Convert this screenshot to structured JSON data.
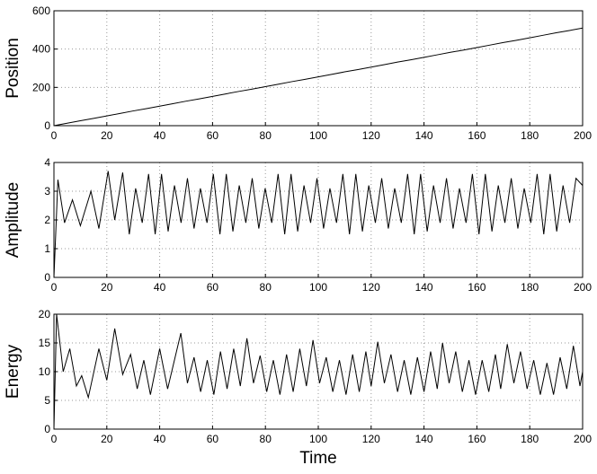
{
  "chart_data": [
    {
      "type": "line",
      "ylabel": "Position",
      "color": "#000000",
      "grid": true,
      "xlim": [
        0,
        200
      ],
      "xticks": [
        0,
        20,
        40,
        60,
        80,
        100,
        120,
        140,
        160,
        180,
        200
      ],
      "ylim": [
        0,
        600
      ],
      "yticks": [
        0,
        200,
        400,
        600
      ],
      "x": [
        0,
        5,
        10,
        15,
        20,
        25,
        30,
        35,
        40,
        45,
        50,
        55,
        60,
        65,
        70,
        75,
        80,
        85,
        90,
        95,
        100,
        105,
        110,
        115,
        120,
        125,
        130,
        135,
        140,
        145,
        150,
        155,
        160,
        165,
        170,
        175,
        180,
        185,
        190,
        195,
        200
      ],
      "values": [
        0,
        13,
        26,
        38,
        51,
        64,
        77,
        89,
        102,
        115,
        128,
        140,
        153,
        166,
        179,
        191,
        204,
        217,
        230,
        242,
        255,
        268,
        281,
        293,
        306,
        319,
        332,
        344,
        357,
        370,
        383,
        395,
        408,
        421,
        434,
        446,
        459,
        472,
        485,
        497,
        510
      ]
    },
    {
      "type": "line",
      "ylabel": "Amplitude",
      "color": "#000000",
      "grid": true,
      "xlim": [
        0,
        200
      ],
      "xticks": [
        0,
        20,
        40,
        60,
        80,
        100,
        120,
        140,
        160,
        180,
        200
      ],
      "ylim": [
        0,
        4
      ],
      "yticks": [
        0,
        1,
        2,
        3,
        4
      ],
      "x": [
        0,
        1.5,
        4,
        7,
        10,
        14,
        17,
        20.5,
        23,
        26,
        28.5,
        30.9,
        33.4,
        35.8,
        38.3,
        40.7,
        43.2,
        45.6,
        48.1,
        50.5,
        53,
        55.4,
        57.9,
        60.3,
        62.8,
        65.2,
        67.7,
        70.1,
        72.6,
        75,
        77.5,
        79.9,
        82.4,
        84.8,
        87.3,
        89.7,
        92.2,
        94.6,
        97.1,
        99.5,
        102,
        104.4,
        106.9,
        109.3,
        111.8,
        114.2,
        116.7,
        119.1,
        121.6,
        124,
        126.5,
        128.9,
        131.4,
        133.8,
        136.3,
        138.7,
        141.2,
        143.6,
        146.1,
        148.5,
        151,
        153.4,
        155.9,
        158.3,
        160.8,
        163.2,
        165.7,
        168.1,
        170.6,
        173,
        175.5,
        177.9,
        180.4,
        182.8,
        185.3,
        187.7,
        190.2,
        192.6,
        195.1,
        197.5,
        200
      ],
      "values": [
        0,
        3.4,
        1.9,
        2.7,
        1.8,
        3.0,
        1.7,
        3.7,
        2.0,
        3.65,
        1.5,
        3.1,
        1.9,
        3.6,
        1.5,
        3.6,
        1.6,
        3.2,
        1.9,
        3.45,
        1.7,
        3.1,
        1.9,
        3.6,
        1.5,
        3.6,
        1.6,
        3.2,
        1.9,
        3.45,
        1.7,
        3.1,
        1.9,
        3.6,
        1.5,
        3.6,
        1.6,
        3.2,
        1.9,
        3.45,
        1.7,
        3.1,
        1.9,
        3.6,
        1.5,
        3.6,
        1.6,
        3.2,
        1.9,
        3.45,
        1.7,
        3.1,
        1.9,
        3.6,
        1.5,
        3.6,
        1.6,
        3.2,
        1.9,
        3.45,
        1.7,
        3.1,
        1.9,
        3.6,
        1.5,
        3.6,
        1.6,
        3.2,
        1.9,
        3.45,
        1.7,
        3.1,
        1.9,
        3.6,
        1.5,
        3.6,
        1.6,
        3.2,
        1.9,
        3.45,
        3.2
      ]
    },
    {
      "type": "line",
      "ylabel": "Energy",
      "xlabel": "Time",
      "color": "#000000",
      "grid": true,
      "xlim": [
        0,
        200
      ],
      "xticks": [
        0,
        20,
        40,
        60,
        80,
        100,
        120,
        140,
        160,
        180,
        200
      ],
      "ylim": [
        0,
        20
      ],
      "yticks": [
        0,
        5,
        10,
        15,
        20
      ],
      "x": [
        0,
        1,
        3.5,
        6,
        8.5,
        10.5,
        13,
        17,
        20,
        23,
        26,
        29,
        31.5,
        34,
        36.5,
        40,
        43,
        48,
        50.5,
        53,
        55.5,
        58,
        60.5,
        63,
        65.5,
        68,
        70.5,
        73,
        75.5,
        78,
        80.5,
        83,
        85.5,
        88,
        90.5,
        93,
        95.5,
        98,
        100.5,
        103,
        105.5,
        108,
        110.5,
        113,
        115.5,
        118,
        120,
        122.5,
        125,
        127.5,
        130,
        132.5,
        135,
        137.5,
        140,
        142.5,
        145,
        147,
        149.5,
        152,
        154.5,
        157,
        159.5,
        162,
        164.5,
        167,
        169,
        171.5,
        174,
        176.5,
        179,
        181.5,
        184,
        186.5,
        189,
        191.5,
        194,
        196.5,
        199,
        200
      ],
      "values": [
        0,
        20,
        10,
        14,
        7.5,
        9.3,
        5.5,
        14,
        8.5,
        17.5,
        9.5,
        13,
        7,
        12,
        6,
        14,
        7,
        16.7,
        8,
        12.5,
        6.5,
        12,
        6,
        13.5,
        7,
        14,
        7.5,
        15.8,
        8,
        12.8,
        6.5,
        12,
        6,
        13,
        6.5,
        14,
        7.5,
        15.5,
        8,
        12.5,
        6.5,
        12,
        6,
        13,
        6.5,
        13.5,
        7.5,
        15.2,
        8,
        13,
        6.5,
        12,
        6,
        12.5,
        6.5,
        13.5,
        7,
        15,
        8,
        13.5,
        6.5,
        12,
        6,
        12,
        6.5,
        13,
        7,
        14.8,
        8,
        13.5,
        7,
        12,
        6,
        11.5,
        6,
        12.5,
        7,
        14.5,
        7.5,
        10
      ]
    }
  ]
}
